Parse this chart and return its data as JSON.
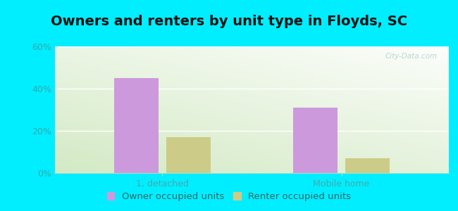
{
  "title": "Owners and renters by unit type in Floyds, SC",
  "categories": [
    "1, detached",
    "Mobile home"
  ],
  "owner_values": [
    45,
    31
  ],
  "renter_values": [
    17,
    7
  ],
  "owner_color": "#cc99dd",
  "renter_color": "#cccc88",
  "ylim": [
    0,
    60
  ],
  "yticks": [
    0,
    20,
    40,
    60
  ],
  "ytick_labels": [
    "0%",
    "20%",
    "40%",
    "60%"
  ],
  "bar_width": 0.25,
  "title_fontsize": 14,
  "tick_fontsize": 9,
  "legend_fontsize": 9.5,
  "background_outer": "#00eeff",
  "watermark": "City-Data.com",
  "legend_owner": "Owner occupied units",
  "legend_renter": "Renter occupied units"
}
